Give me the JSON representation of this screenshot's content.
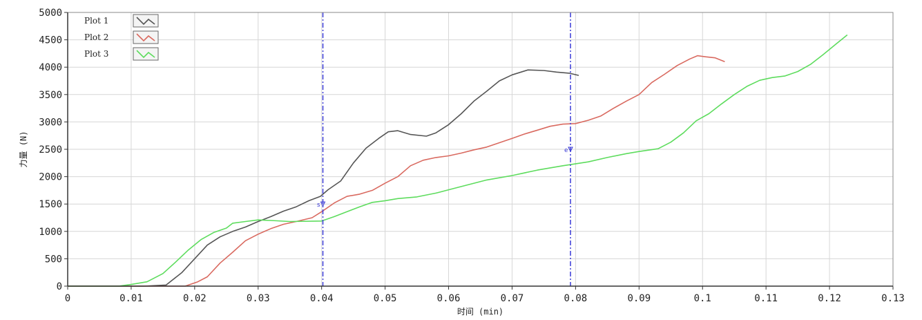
{
  "chart_data": {
    "type": "line",
    "title": "",
    "xlabel": "时间 (min)",
    "ylabel": "力量 (N)",
    "xlim": [
      0,
      0.13
    ],
    "ylim": [
      0,
      5000
    ],
    "x_ticks": [
      0,
      0.01,
      0.02,
      0.03,
      0.04,
      0.05,
      0.06,
      0.07,
      0.08,
      0.09,
      0.1,
      0.11,
      0.12,
      0.13
    ],
    "x_tick_labels": [
      "0",
      "0.01",
      "0.02",
      "0.03",
      "0.04",
      "0.05",
      "0.06",
      "0.07",
      "0.08",
      "0.09",
      "0.1",
      "0.11",
      "0.12",
      "0.13"
    ],
    "y_ticks": [
      0,
      500,
      1000,
      1500,
      2000,
      2500,
      3000,
      3500,
      4000,
      4500,
      5000
    ],
    "y_tick_labels": [
      "0",
      "500",
      "1000",
      "1500",
      "2000",
      "2500",
      "3000",
      "3500",
      "4000",
      "4500",
      "5000"
    ],
    "grid": true,
    "legend_position": "top-left",
    "series": [
      {
        "name": "Plot 1",
        "color": "#555555",
        "points": [
          [
            0,
            0
          ],
          [
            0.012,
            0
          ],
          [
            0.0155,
            20
          ],
          [
            0.018,
            250
          ],
          [
            0.02,
            500
          ],
          [
            0.022,
            750
          ],
          [
            0.024,
            900
          ],
          [
            0.026,
            1000
          ],
          [
            0.028,
            1080
          ],
          [
            0.03,
            1180
          ],
          [
            0.032,
            1270
          ],
          [
            0.034,
            1370
          ],
          [
            0.036,
            1450
          ],
          [
            0.038,
            1560
          ],
          [
            0.0398,
            1640
          ],
          [
            0.041,
            1760
          ],
          [
            0.043,
            1920
          ],
          [
            0.045,
            2250
          ],
          [
            0.047,
            2520
          ],
          [
            0.049,
            2700
          ],
          [
            0.0505,
            2820
          ],
          [
            0.052,
            2840
          ],
          [
            0.054,
            2770
          ],
          [
            0.0565,
            2740
          ],
          [
            0.058,
            2800
          ],
          [
            0.06,
            2950
          ],
          [
            0.062,
            3150
          ],
          [
            0.064,
            3380
          ],
          [
            0.066,
            3560
          ],
          [
            0.068,
            3750
          ],
          [
            0.07,
            3860
          ],
          [
            0.0725,
            3950
          ],
          [
            0.075,
            3940
          ],
          [
            0.077,
            3910
          ],
          [
            0.079,
            3890
          ],
          [
            0.0805,
            3850
          ]
        ]
      },
      {
        "name": "Plot 2",
        "color": "#d9695f",
        "points": [
          [
            0,
            0
          ],
          [
            0.015,
            0
          ],
          [
            0.0185,
            0
          ],
          [
            0.0205,
            80
          ],
          [
            0.022,
            170
          ],
          [
            0.024,
            420
          ],
          [
            0.026,
            620
          ],
          [
            0.028,
            830
          ],
          [
            0.03,
            950
          ],
          [
            0.032,
            1050
          ],
          [
            0.034,
            1130
          ],
          [
            0.036,
            1180
          ],
          [
            0.0385,
            1250
          ],
          [
            0.04,
            1360
          ],
          [
            0.042,
            1520
          ],
          [
            0.044,
            1640
          ],
          [
            0.046,
            1680
          ],
          [
            0.048,
            1750
          ],
          [
            0.05,
            1880
          ],
          [
            0.052,
            2000
          ],
          [
            0.054,
            2200
          ],
          [
            0.056,
            2300
          ],
          [
            0.058,
            2350
          ],
          [
            0.06,
            2380
          ],
          [
            0.062,
            2430
          ],
          [
            0.064,
            2490
          ],
          [
            0.066,
            2540
          ],
          [
            0.068,
            2620
          ],
          [
            0.07,
            2700
          ],
          [
            0.072,
            2780
          ],
          [
            0.074,
            2850
          ],
          [
            0.076,
            2920
          ],
          [
            0.078,
            2960
          ],
          [
            0.08,
            2970
          ],
          [
            0.082,
            3030
          ],
          [
            0.084,
            3110
          ],
          [
            0.086,
            3250
          ],
          [
            0.088,
            3380
          ],
          [
            0.09,
            3500
          ],
          [
            0.092,
            3720
          ],
          [
            0.094,
            3870
          ],
          [
            0.096,
            4030
          ],
          [
            0.098,
            4150
          ],
          [
            0.0992,
            4210
          ],
          [
            0.1005,
            4190
          ],
          [
            0.102,
            4170
          ],
          [
            0.1035,
            4100
          ]
        ]
      },
      {
        "name": "Plot 3",
        "color": "#5ddc5d",
        "points": [
          [
            0,
            0
          ],
          [
            0.008,
            0
          ],
          [
            0.01,
            30
          ],
          [
            0.0125,
            80
          ],
          [
            0.015,
            230
          ],
          [
            0.017,
            440
          ],
          [
            0.019,
            660
          ],
          [
            0.021,
            850
          ],
          [
            0.023,
            980
          ],
          [
            0.025,
            1060
          ],
          [
            0.026,
            1150
          ],
          [
            0.028,
            1180
          ],
          [
            0.03,
            1210
          ],
          [
            0.032,
            1200
          ],
          [
            0.035,
            1180
          ],
          [
            0.04,
            1190
          ],
          [
            0.042,
            1270
          ],
          [
            0.044,
            1360
          ],
          [
            0.046,
            1450
          ],
          [
            0.048,
            1530
          ],
          [
            0.05,
            1560
          ],
          [
            0.052,
            1600
          ],
          [
            0.055,
            1630
          ],
          [
            0.058,
            1700
          ],
          [
            0.06,
            1760
          ],
          [
            0.062,
            1820
          ],
          [
            0.064,
            1880
          ],
          [
            0.066,
            1940
          ],
          [
            0.07,
            2020
          ],
          [
            0.074,
            2120
          ],
          [
            0.078,
            2200
          ],
          [
            0.082,
            2270
          ],
          [
            0.085,
            2350
          ],
          [
            0.088,
            2420
          ],
          [
            0.09,
            2460
          ],
          [
            0.093,
            2510
          ],
          [
            0.095,
            2630
          ],
          [
            0.097,
            2800
          ],
          [
            0.099,
            3020
          ],
          [
            0.101,
            3150
          ],
          [
            0.103,
            3330
          ],
          [
            0.105,
            3500
          ],
          [
            0.107,
            3650
          ],
          [
            0.109,
            3760
          ],
          [
            0.111,
            3810
          ],
          [
            0.113,
            3840
          ],
          [
            0.115,
            3920
          ],
          [
            0.117,
            4050
          ],
          [
            0.119,
            4230
          ],
          [
            0.121,
            4420
          ],
          [
            0.1228,
            4590
          ]
        ]
      }
    ],
    "cursors": [
      {
        "x": 0.0402,
        "label": "s"
      },
      {
        "x": 0.0792,
        "label": "e"
      }
    ]
  }
}
